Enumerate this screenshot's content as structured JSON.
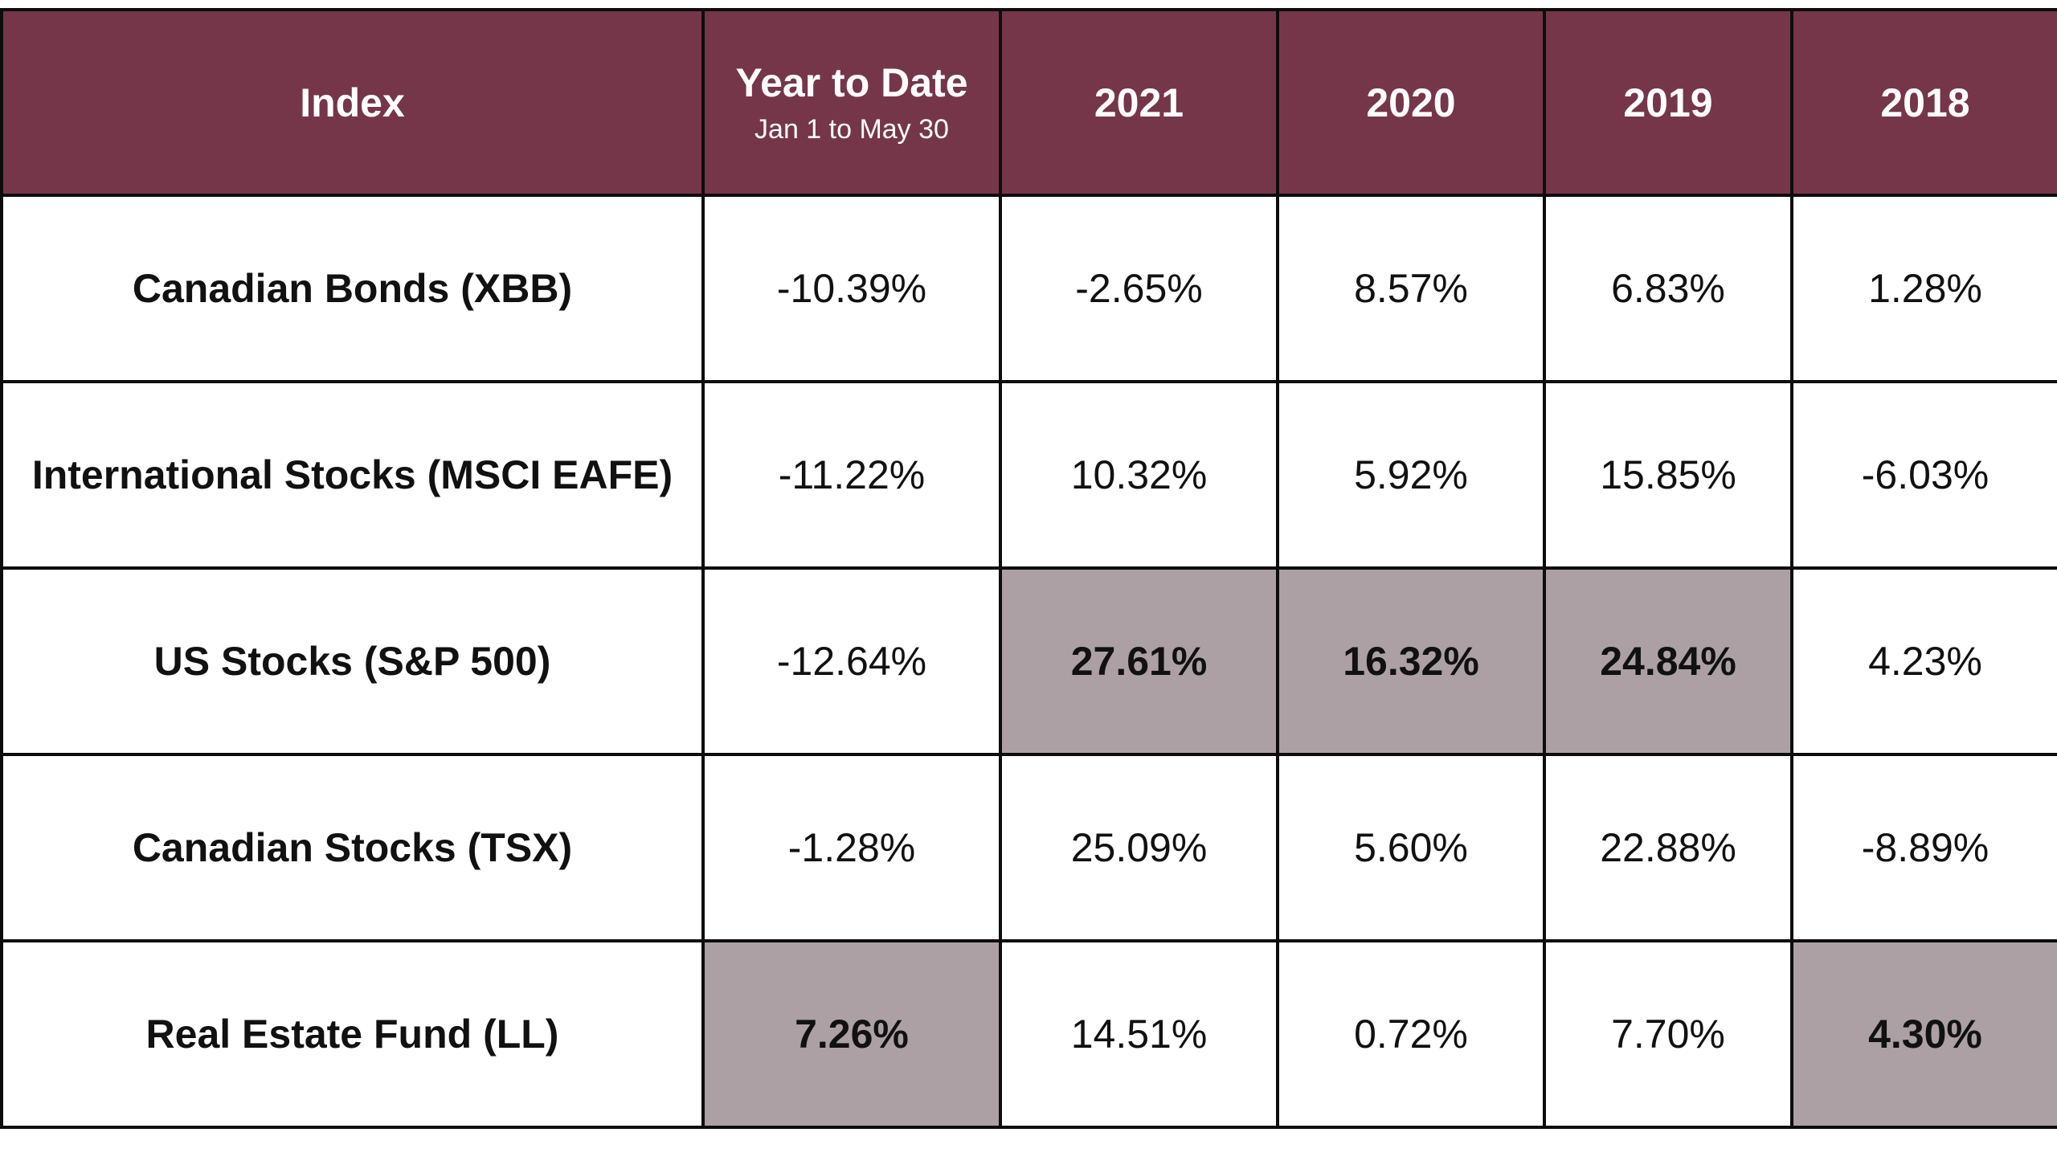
{
  "chart_data": {
    "type": "table",
    "colors": {
      "header_bg": "#75364a",
      "header_text": "#ffffff",
      "highlight_bg": "#aca0a5",
      "border": "#0d0d0d"
    },
    "columns": [
      {
        "label": "Index",
        "sub": ""
      },
      {
        "label": "Year to Date",
        "sub": "Jan 1 to May 30"
      },
      {
        "label": "2021",
        "sub": ""
      },
      {
        "label": "2020",
        "sub": ""
      },
      {
        "label": "2019",
        "sub": ""
      },
      {
        "label": "2018",
        "sub": ""
      }
    ],
    "rows": [
      {
        "label": "Canadian Bonds (XBB)",
        "cells": [
          {
            "value": "-10.39%",
            "highlight": false
          },
          {
            "value": "-2.65%",
            "highlight": false
          },
          {
            "value": "8.57%",
            "highlight": false
          },
          {
            "value": "6.83%",
            "highlight": false
          },
          {
            "value": "1.28%",
            "highlight": false
          }
        ]
      },
      {
        "label": "International Stocks (MSCI EAFE)",
        "cells": [
          {
            "value": "-11.22%",
            "highlight": false
          },
          {
            "value": "10.32%",
            "highlight": false
          },
          {
            "value": "5.92%",
            "highlight": false
          },
          {
            "value": "15.85%",
            "highlight": false
          },
          {
            "value": "-6.03%",
            "highlight": false
          }
        ]
      },
      {
        "label": "US Stocks (S&P 500)",
        "cells": [
          {
            "value": "-12.64%",
            "highlight": false
          },
          {
            "value": "27.61%",
            "highlight": true
          },
          {
            "value": "16.32%",
            "highlight": true
          },
          {
            "value": "24.84%",
            "highlight": true
          },
          {
            "value": "4.23%",
            "highlight": false
          }
        ]
      },
      {
        "label": "Canadian Stocks (TSX)",
        "cells": [
          {
            "value": "-1.28%",
            "highlight": false
          },
          {
            "value": "25.09%",
            "highlight": false
          },
          {
            "value": "5.60%",
            "highlight": false
          },
          {
            "value": "22.88%",
            "highlight": false
          },
          {
            "value": "-8.89%",
            "highlight": false
          }
        ]
      },
      {
        "label": "Real Estate Fund (LL)",
        "cells": [
          {
            "value": "7.26%",
            "highlight": true
          },
          {
            "value": "14.51%",
            "highlight": false
          },
          {
            "value": "0.72%",
            "highlight": false
          },
          {
            "value": "7.70%",
            "highlight": false
          },
          {
            "value": "4.30%",
            "highlight": true
          }
        ]
      }
    ]
  }
}
